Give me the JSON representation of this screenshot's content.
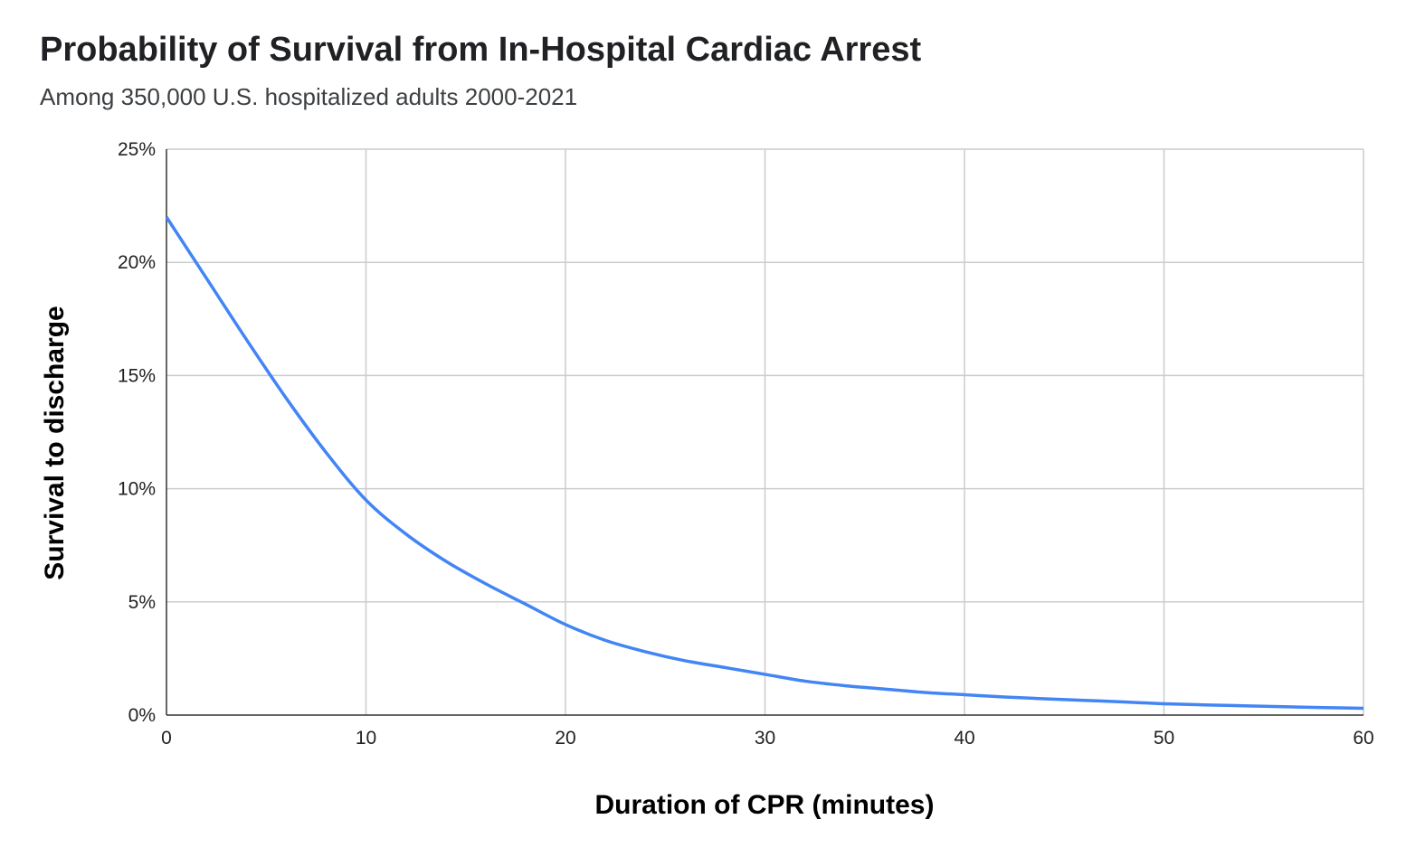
{
  "chart_data": {
    "type": "line",
    "title": "Probability of Survival from In-Hospital Cardiac Arrest",
    "subtitle": "Among 350,000 U.S. hospitalized adults 2000-2021",
    "xlabel": "Duration of CPR (minutes)",
    "ylabel": "Survival to discharge",
    "xlim": [
      0,
      60
    ],
    "ylim": [
      0,
      25
    ],
    "x_ticks": [
      0,
      10,
      20,
      30,
      40,
      50,
      60
    ],
    "y_ticks": [
      0,
      5,
      10,
      15,
      20,
      25
    ],
    "y_tick_suffix": "%",
    "grid": true,
    "legend": "none",
    "series": [
      {
        "color": "#4285f4",
        "x": [
          0,
          2,
          4,
          6,
          8,
          10,
          12,
          14,
          16,
          18,
          20,
          22,
          24,
          26,
          28,
          30,
          32,
          34,
          36,
          38,
          40,
          42,
          44,
          46,
          48,
          50,
          52,
          54,
          56,
          58,
          60
        ],
        "values": [
          22.0,
          19.3,
          16.6,
          14.0,
          11.6,
          9.5,
          8.0,
          6.8,
          5.8,
          4.9,
          4.0,
          3.3,
          2.8,
          2.4,
          2.1,
          1.8,
          1.5,
          1.3,
          1.15,
          1.0,
          0.9,
          0.8,
          0.72,
          0.65,
          0.58,
          0.5,
          0.45,
          0.41,
          0.37,
          0.33,
          0.3
        ]
      }
    ]
  }
}
